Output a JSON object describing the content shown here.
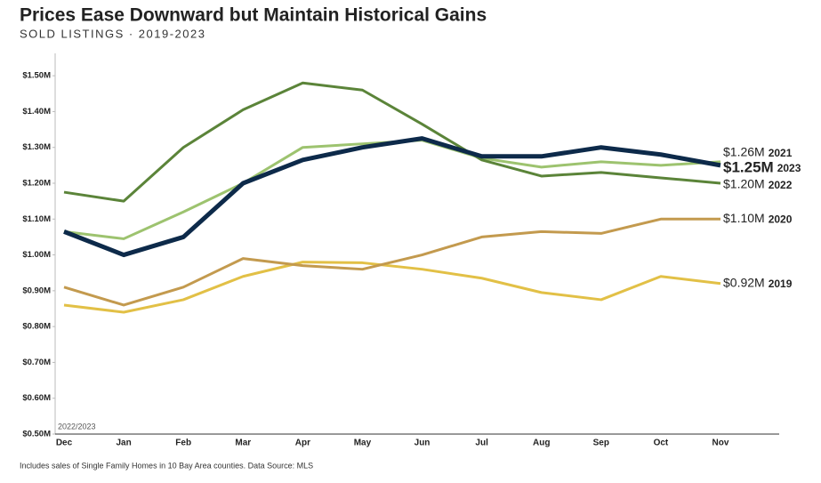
{
  "chart_data": {
    "type": "line",
    "title": "Prices Ease Downward but Maintain Historical Gains",
    "subtitle": "SOLD LISTINGS · 2019-2023",
    "annotation": "2022/2023",
    "footnote": "Includes sales of Single Family Homes in 10 Bay Area counties. Data Source: MLS",
    "categories": [
      "Dec",
      "Jan",
      "Feb",
      "Mar",
      "Apr",
      "May",
      "Jun",
      "Jul",
      "Aug",
      "Sep",
      "Oct",
      "Nov"
    ],
    "ylim": [
      0.5,
      1.55
    ],
    "yticks": [
      {
        "value": 0.5,
        "label": "$0.50M"
      },
      {
        "value": 0.6,
        "label": "$0.60M"
      },
      {
        "value": 0.7,
        "label": "$0.70M"
      },
      {
        "value": 0.8,
        "label": "$0.80M"
      },
      {
        "value": 0.9,
        "label": "$0.90M"
      },
      {
        "value": 1.0,
        "label": "$1.00M"
      },
      {
        "value": 1.1,
        "label": "$1.10M"
      },
      {
        "value": 1.2,
        "label": "$1.20M"
      },
      {
        "value": 1.3,
        "label": "$1.30M"
      },
      {
        "value": 1.4,
        "label": "$1.40M"
      },
      {
        "value": 1.5,
        "label": "$1.50M"
      }
    ],
    "grid": false,
    "series": [
      {
        "name": "2019",
        "color": "#e2c046",
        "values": [
          0.86,
          0.84,
          0.875,
          0.94,
          0.98,
          0.978,
          0.96,
          0.935,
          0.895,
          0.875,
          0.94,
          0.92
        ],
        "value_labels": [
          null,
          null,
          null,
          null,
          null,
          null,
          null,
          null,
          null,
          null,
          null,
          "$0.92M"
        ]
      },
      {
        "name": "2020",
        "color": "#c39a4e",
        "values": [
          0.91,
          0.86,
          0.91,
          0.99,
          0.97,
          0.96,
          1.0,
          1.05,
          1.065,
          1.06,
          1.1,
          1.1
        ],
        "value_labels": [
          null,
          null,
          null,
          null,
          null,
          null,
          null,
          null,
          null,
          null,
          null,
          "$1.10M"
        ]
      },
      {
        "name": "2021",
        "color": "#9dc36f",
        "values": [
          1.065,
          1.045,
          1.12,
          1.2,
          1.3,
          1.31,
          1.32,
          1.27,
          1.245,
          1.26,
          1.25,
          1.26
        ],
        "value_labels": [
          null,
          null,
          null,
          null,
          null,
          null,
          null,
          null,
          null,
          null,
          null,
          "$1.26M"
        ]
      },
      {
        "name": "2022",
        "color": "#5b8439",
        "values": [
          1.175,
          1.15,
          1.3,
          1.405,
          1.48,
          1.46,
          1.365,
          1.265,
          1.22,
          1.23,
          1.215,
          1.2
        ],
        "value_labels": [
          null,
          null,
          null,
          null,
          null,
          null,
          null,
          null,
          null,
          null,
          null,
          "$1.20M"
        ]
      },
      {
        "name": "2023",
        "color": "#0d2a4a",
        "values": [
          1.065,
          1.0,
          1.05,
          1.2,
          1.265,
          1.3,
          1.325,
          1.275,
          1.275,
          1.3,
          1.28,
          1.25
        ],
        "value_labels": [
          null,
          null,
          null,
          null,
          null,
          null,
          null,
          null,
          null,
          null,
          null,
          "$1.25M"
        ]
      }
    ]
  }
}
